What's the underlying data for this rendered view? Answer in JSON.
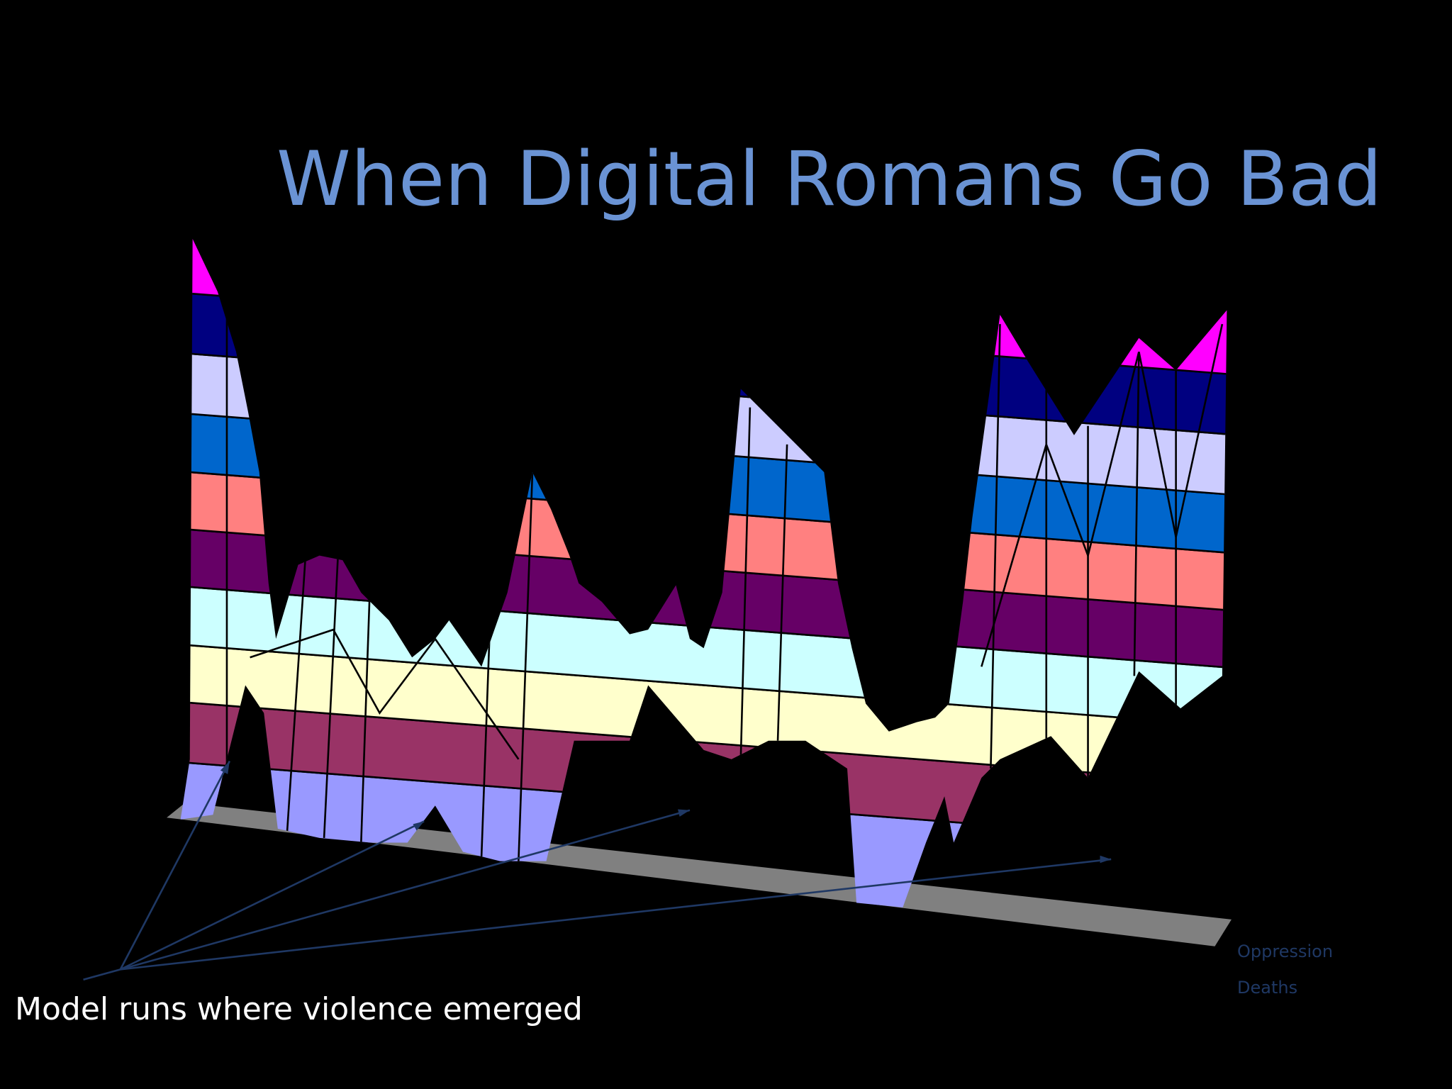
{
  "title": "When Digital Romans Go Bad",
  "caption": "Model runs where violence emerged",
  "legend": [
    "Oppression",
    "Deaths"
  ]
}
